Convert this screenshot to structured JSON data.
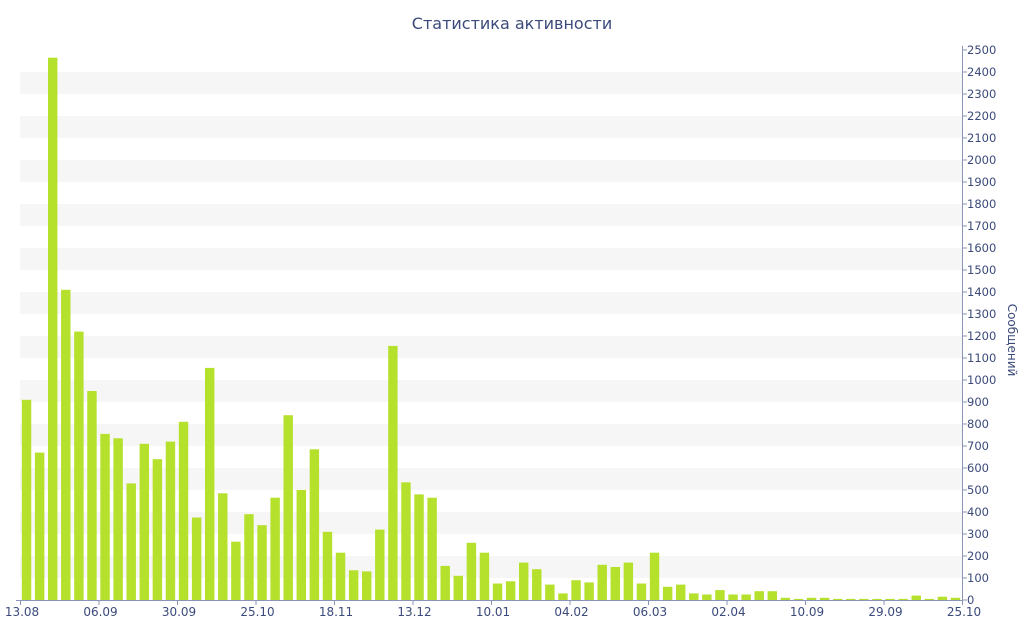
{
  "chart_data": {
    "type": "bar",
    "title": "Статистика активности",
    "xlabel": "",
    "ylabel": "Сообщений",
    "ylim": [
      0,
      2500
    ],
    "y_ticks": [
      0,
      100,
      200,
      300,
      400,
      500,
      600,
      700,
      800,
      900,
      1000,
      1100,
      1200,
      1300,
      1400,
      1500,
      1600,
      1700,
      1800,
      1900,
      2000,
      2100,
      2200,
      2300,
      2400,
      2500
    ],
    "y_axis_side": "right",
    "x_tick_labels": [
      "13.08",
      "06.09",
      "30.09",
      "25.10",
      "18.11",
      "13.12",
      "10.01",
      "04.02",
      "06.03",
      "02.04",
      "10.09",
      "29.09",
      "25.10"
    ],
    "x_tick_label_every": 6,
    "bar_color": "#b5e02c",
    "band_color": "#f6f6f6",
    "text_color": "#3b4a7a",
    "grid": "horizontal bands",
    "legend": "none",
    "values": [
      910,
      670,
      2465,
      1410,
      1220,
      950,
      755,
      735,
      530,
      710,
      640,
      720,
      810,
      375,
      1055,
      485,
      265,
      390,
      340,
      465,
      840,
      500,
      685,
      310,
      215,
      135,
      130,
      320,
      1155,
      535,
      480,
      465,
      155,
      110,
      260,
      215,
      75,
      85,
      170,
      140,
      70,
      30,
      90,
      80,
      160,
      150,
      170,
      75,
      215,
      60,
      70,
      30,
      25,
      45,
      25,
      25,
      40,
      40,
      10,
      5,
      10,
      10,
      5,
      5,
      5,
      5,
      5,
      5,
      20,
      5,
      15,
      10
    ]
  }
}
